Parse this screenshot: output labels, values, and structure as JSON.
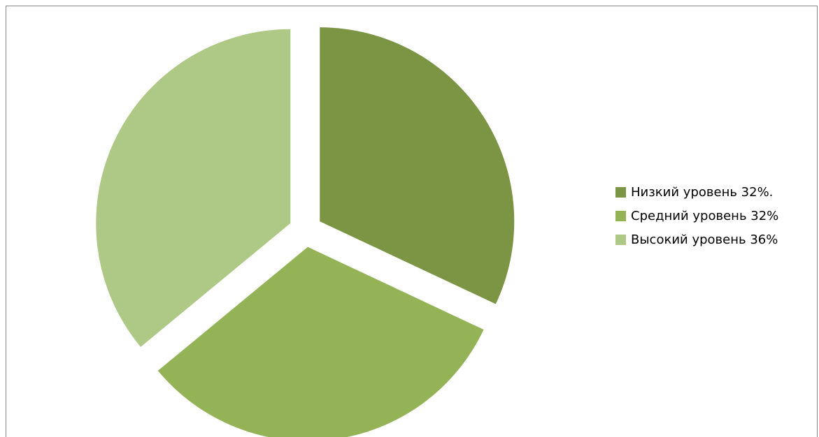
{
  "chart_data": {
    "type": "pie",
    "title": "",
    "exploded": true,
    "slices": [
      {
        "label": "Низкий уровень 32%.",
        "value": 32,
        "color": "#7b9544"
      },
      {
        "label": "Средний уровень 32%",
        "value": 32,
        "color": "#93b356"
      },
      {
        "label": "Высокий уровень 36%",
        "value": 36,
        "color": "#aec886"
      }
    ],
    "legend_position": "right"
  }
}
